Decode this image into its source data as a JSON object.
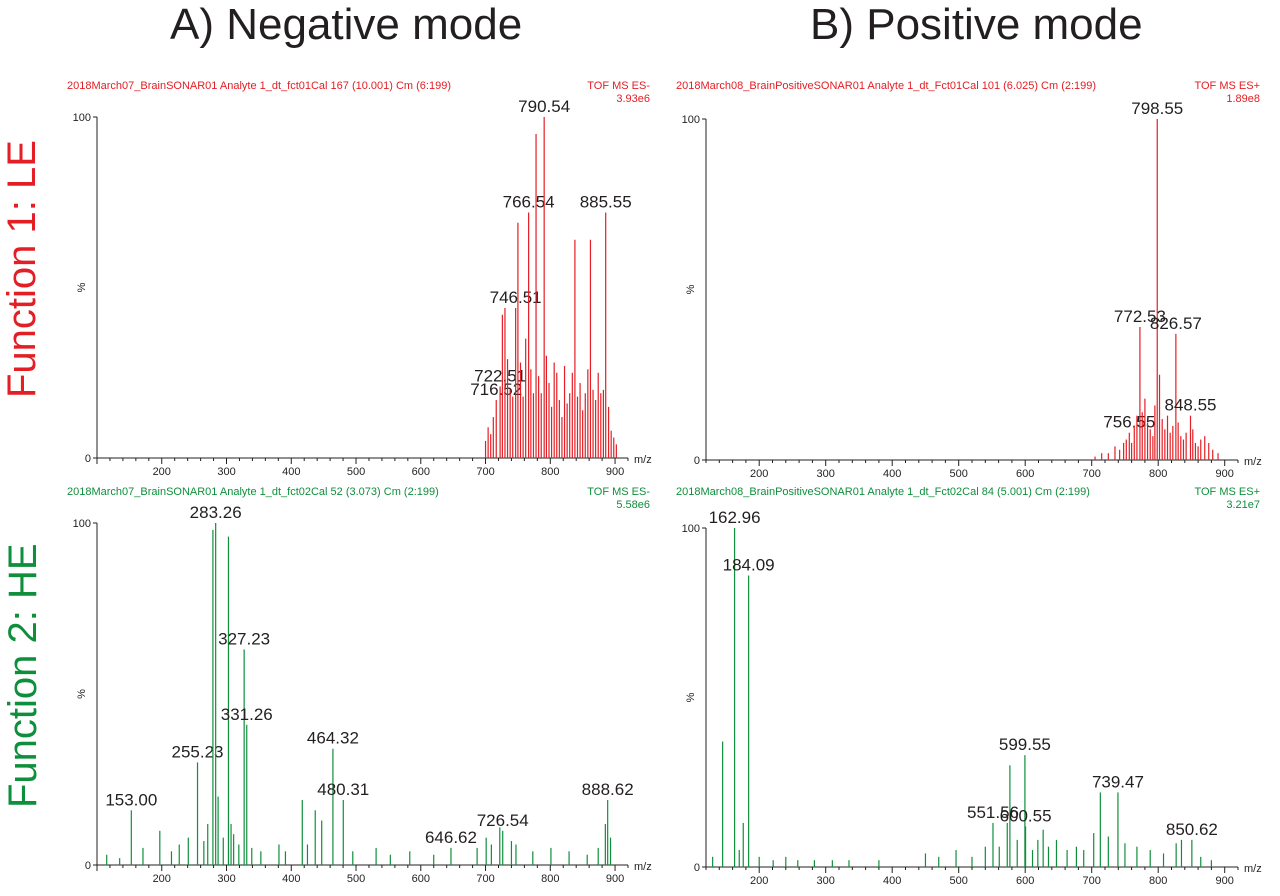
{
  "columns": {
    "negative": "A) Negative mode",
    "positive": "B) Positive mode"
  },
  "rows": {
    "le": "Function 1: LE",
    "he": "Function 2: HE"
  },
  "colors": {
    "le": "#e31e24",
    "he": "#0f8f3c",
    "text": "#231f20"
  },
  "chart_data": [
    {
      "type": "bar",
      "title": "2018March07_BrainSONAR01 Analyte 1_dt_fct01Cal 167 (10.001) Cm (6:199)",
      "mode": "TOF MS ES-",
      "intensity": "3.93e6",
      "xlabel": "m/z",
      "ylabel": "%",
      "xlim": [
        100,
        920
      ],
      "ylim": [
        0,
        100
      ],
      "xticks": [
        200,
        300,
        400,
        500,
        600,
        700,
        800,
        900
      ],
      "yticks": [
        0,
        100
      ],
      "peaks": [
        {
          "x": 700,
          "y": 5
        },
        {
          "x": 704,
          "y": 9
        },
        {
          "x": 708,
          "y": 7
        },
        {
          "x": 712,
          "y": 12
        },
        {
          "x": 716.52,
          "y": 17,
          "label": "716.52"
        },
        {
          "x": 722.51,
          "y": 21,
          "label": "722.51"
        },
        {
          "x": 726,
          "y": 42
        },
        {
          "x": 730,
          "y": 44
        },
        {
          "x": 734,
          "y": 29
        },
        {
          "x": 738,
          "y": 20
        },
        {
          "x": 742,
          "y": 18
        },
        {
          "x": 746.51,
          "y": 44,
          "label": "746.51"
        },
        {
          "x": 750,
          "y": 69
        },
        {
          "x": 754,
          "y": 28
        },
        {
          "x": 758,
          "y": 18
        },
        {
          "x": 762,
          "y": 35
        },
        {
          "x": 766.54,
          "y": 72,
          "label": "766.54"
        },
        {
          "x": 770,
          "y": 26
        },
        {
          "x": 774,
          "y": 19
        },
        {
          "x": 778,
          "y": 95
        },
        {
          "x": 782,
          "y": 24
        },
        {
          "x": 786,
          "y": 19
        },
        {
          "x": 790.54,
          "y": 100,
          "label": "790.54"
        },
        {
          "x": 794,
          "y": 30
        },
        {
          "x": 798,
          "y": 22
        },
        {
          "x": 802,
          "y": 15
        },
        {
          "x": 806,
          "y": 28
        },
        {
          "x": 810,
          "y": 25
        },
        {
          "x": 814,
          "y": 17
        },
        {
          "x": 818,
          "y": 12
        },
        {
          "x": 822,
          "y": 27
        },
        {
          "x": 826,
          "y": 16
        },
        {
          "x": 830,
          "y": 19
        },
        {
          "x": 834,
          "y": 25
        },
        {
          "x": 838,
          "y": 64
        },
        {
          "x": 842,
          "y": 18
        },
        {
          "x": 846,
          "y": 22
        },
        {
          "x": 850,
          "y": 14
        },
        {
          "x": 854,
          "y": 19
        },
        {
          "x": 858,
          "y": 26
        },
        {
          "x": 862,
          "y": 64
        },
        {
          "x": 866,
          "y": 20
        },
        {
          "x": 870,
          "y": 17
        },
        {
          "x": 874,
          "y": 25
        },
        {
          "x": 878,
          "y": 19
        },
        {
          "x": 882,
          "y": 20
        },
        {
          "x": 885.55,
          "y": 72,
          "label": "885.55"
        },
        {
          "x": 890,
          "y": 15
        },
        {
          "x": 894,
          "y": 8
        },
        {
          "x": 898,
          "y": 6
        },
        {
          "x": 902,
          "y": 4
        }
      ]
    },
    {
      "type": "bar",
      "title": "2018March08_BrainPositiveSONAR01 Analyte 1_dt_Fct01Cal 101 (6.025) Cm (2:199)",
      "mode": "TOF MS ES+",
      "intensity": "1.89e8",
      "xlabel": "m/z",
      "ylabel": "%",
      "xlim": [
        120,
        920
      ],
      "ylim": [
        0,
        100
      ],
      "xticks": [
        200,
        300,
        400,
        500,
        600,
        700,
        800,
        900
      ],
      "yticks": [
        0,
        100
      ],
      "peaks": [
        {
          "x": 705,
          "y": 1
        },
        {
          "x": 715,
          "y": 2
        },
        {
          "x": 725,
          "y": 2
        },
        {
          "x": 735,
          "y": 4
        },
        {
          "x": 742,
          "y": 3
        },
        {
          "x": 748,
          "y": 5
        },
        {
          "x": 752,
          "y": 6
        },
        {
          "x": 756.55,
          "y": 8,
          "label": "756.55"
        },
        {
          "x": 760,
          "y": 5
        },
        {
          "x": 764,
          "y": 10
        },
        {
          "x": 768,
          "y": 13
        },
        {
          "x": 772.53,
          "y": 39,
          "label": "772.53"
        },
        {
          "x": 776,
          "y": 14
        },
        {
          "x": 780,
          "y": 18
        },
        {
          "x": 784,
          "y": 11
        },
        {
          "x": 788,
          "y": 9
        },
        {
          "x": 792,
          "y": 7
        },
        {
          "x": 795,
          "y": 16
        },
        {
          "x": 798.55,
          "y": 100,
          "label": "798.55"
        },
        {
          "x": 802,
          "y": 25
        },
        {
          "x": 806,
          "y": 12
        },
        {
          "x": 810,
          "y": 9
        },
        {
          "x": 814,
          "y": 13
        },
        {
          "x": 818,
          "y": 8
        },
        {
          "x": 822,
          "y": 10
        },
        {
          "x": 826.57,
          "y": 37,
          "label": "826.57"
        },
        {
          "x": 830,
          "y": 11
        },
        {
          "x": 834,
          "y": 7
        },
        {
          "x": 838,
          "y": 6
        },
        {
          "x": 842,
          "y": 8
        },
        {
          "x": 848.55,
          "y": 13,
          "label": "848.55"
        },
        {
          "x": 852,
          "y": 9
        },
        {
          "x": 856,
          "y": 5
        },
        {
          "x": 860,
          "y": 4
        },
        {
          "x": 864,
          "y": 6
        },
        {
          "x": 870,
          "y": 7
        },
        {
          "x": 876,
          "y": 5
        },
        {
          "x": 882,
          "y": 3
        },
        {
          "x": 890,
          "y": 2
        }
      ]
    },
    {
      "type": "bar",
      "title": "2018March07_BrainSONAR01 Analyte 1_dt_fct02Cal 52 (3.073) Cm (2:199)",
      "mode": "TOF MS ES-",
      "intensity": "5.58e6",
      "xlabel": "m/z",
      "ylabel": "%",
      "xlim": [
        100,
        920
      ],
      "ylim": [
        0,
        100
      ],
      "xticks": [
        200,
        300,
        400,
        500,
        600,
        700,
        800,
        900
      ],
      "yticks": [
        0,
        100
      ],
      "peaks": [
        {
          "x": 115,
          "y": 3
        },
        {
          "x": 135,
          "y": 2
        },
        {
          "x": 153.0,
          "y": 16,
          "label": "153.00"
        },
        {
          "x": 171,
          "y": 5
        },
        {
          "x": 197,
          "y": 10
        },
        {
          "x": 215,
          "y": 4
        },
        {
          "x": 227,
          "y": 6
        },
        {
          "x": 241,
          "y": 8
        },
        {
          "x": 255.23,
          "y": 30,
          "label": "255.23"
        },
        {
          "x": 265,
          "y": 7
        },
        {
          "x": 271,
          "y": 12
        },
        {
          "x": 279,
          "y": 98
        },
        {
          "x": 283.26,
          "y": 100,
          "label": "283.26"
        },
        {
          "x": 287,
          "y": 20
        },
        {
          "x": 295,
          "y": 8
        },
        {
          "x": 303,
          "y": 96
        },
        {
          "x": 307,
          "y": 12
        },
        {
          "x": 311,
          "y": 9
        },
        {
          "x": 319,
          "y": 6
        },
        {
          "x": 327.23,
          "y": 63,
          "label": "327.23"
        },
        {
          "x": 331.26,
          "y": 41,
          "label": "331.26"
        },
        {
          "x": 339,
          "y": 5
        },
        {
          "x": 353,
          "y": 4
        },
        {
          "x": 381,
          "y": 6
        },
        {
          "x": 391,
          "y": 4
        },
        {
          "x": 417,
          "y": 19
        },
        {
          "x": 425,
          "y": 6
        },
        {
          "x": 437,
          "y": 16
        },
        {
          "x": 447,
          "y": 13
        },
        {
          "x": 464.32,
          "y": 34,
          "label": "464.32"
        },
        {
          "x": 480.31,
          "y": 19,
          "label": "480.31"
        },
        {
          "x": 495,
          "y": 4
        },
        {
          "x": 531,
          "y": 5
        },
        {
          "x": 553,
          "y": 3
        },
        {
          "x": 583,
          "y": 4
        },
        {
          "x": 620,
          "y": 3
        },
        {
          "x": 646.62,
          "y": 5,
          "label": "646.62"
        },
        {
          "x": 687,
          "y": 5
        },
        {
          "x": 701,
          "y": 8
        },
        {
          "x": 709,
          "y": 6
        },
        {
          "x": 722,
          "y": 11
        },
        {
          "x": 726.54,
          "y": 10,
          "label": "726.54"
        },
        {
          "x": 740,
          "y": 7
        },
        {
          "x": 747,
          "y": 6
        },
        {
          "x": 773,
          "y": 4
        },
        {
          "x": 801,
          "y": 5
        },
        {
          "x": 829,
          "y": 4
        },
        {
          "x": 857,
          "y": 3
        },
        {
          "x": 874,
          "y": 5
        },
        {
          "x": 885,
          "y": 12
        },
        {
          "x": 888.62,
          "y": 19,
          "label": "888.62"
        },
        {
          "x": 893,
          "y": 8
        }
      ]
    },
    {
      "type": "bar",
      "title": "2018March08_BrainPositiveSONAR01 Analyte 1_dt_Fct02Cal 84 (5.001) Cm (2:199)",
      "mode": "TOF MS ES+",
      "intensity": "3.21e7",
      "xlabel": "m/z",
      "ylabel": "%",
      "xlim": [
        120,
        920
      ],
      "ylim": [
        0,
        100
      ],
      "xticks": [
        200,
        300,
        400,
        500,
        600,
        700,
        800,
        900
      ],
      "yticks": [
        0,
        100
      ],
      "peaks": [
        {
          "x": 130,
          "y": 3
        },
        {
          "x": 145,
          "y": 37
        },
        {
          "x": 162.96,
          "y": 100,
          "label": "162.96"
        },
        {
          "x": 170,
          "y": 5
        },
        {
          "x": 176,
          "y": 13
        },
        {
          "x": 184.09,
          "y": 86,
          "label": "184.09"
        },
        {
          "x": 200,
          "y": 3
        },
        {
          "x": 221,
          "y": 2
        },
        {
          "x": 240,
          "y": 3
        },
        {
          "x": 258,
          "y": 2
        },
        {
          "x": 283,
          "y": 2
        },
        {
          "x": 310,
          "y": 2
        },
        {
          "x": 335,
          "y": 2
        },
        {
          "x": 380,
          "y": 2
        },
        {
          "x": 450,
          "y": 4
        },
        {
          "x": 470,
          "y": 3
        },
        {
          "x": 496,
          "y": 5
        },
        {
          "x": 520,
          "y": 3
        },
        {
          "x": 540,
          "y": 6
        },
        {
          "x": 551.56,
          "y": 13,
          "label": "551.56"
        },
        {
          "x": 561,
          "y": 6
        },
        {
          "x": 573,
          "y": 13
        },
        {
          "x": 577,
          "y": 30
        },
        {
          "x": 588,
          "y": 8
        },
        {
          "x": 599.55,
          "y": 33,
          "label": "599.55"
        },
        {
          "x": 600.55,
          "y": 12,
          "label": "600.55"
        },
        {
          "x": 611,
          "y": 5
        },
        {
          "x": 619,
          "y": 8
        },
        {
          "x": 627,
          "y": 11
        },
        {
          "x": 635,
          "y": 6
        },
        {
          "x": 647,
          "y": 8
        },
        {
          "x": 663,
          "y": 5
        },
        {
          "x": 677,
          "y": 6
        },
        {
          "x": 688,
          "y": 5
        },
        {
          "x": 703,
          "y": 10
        },
        {
          "x": 713,
          "y": 22
        },
        {
          "x": 725,
          "y": 9
        },
        {
          "x": 739.47,
          "y": 22,
          "label": "739.47"
        },
        {
          "x": 750,
          "y": 7
        },
        {
          "x": 768,
          "y": 6
        },
        {
          "x": 788,
          "y": 5
        },
        {
          "x": 808,
          "y": 4
        },
        {
          "x": 827,
          "y": 7
        },
        {
          "x": 835,
          "y": 8
        },
        {
          "x": 850.62,
          "y": 8,
          "label": "850.62"
        },
        {
          "x": 864,
          "y": 3
        },
        {
          "x": 880,
          "y": 2
        }
      ]
    }
  ]
}
